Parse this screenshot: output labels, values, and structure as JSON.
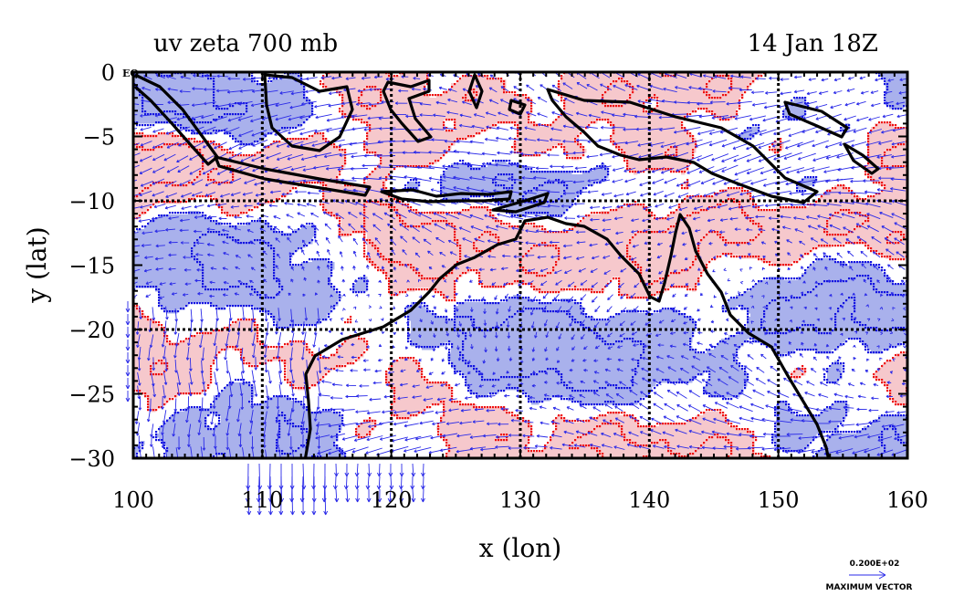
{
  "chart_data": {
    "type": "contour-vector-map",
    "title": "uv zeta 700 mb",
    "time_label": "14 Jan 18Z",
    "equator_label": "EQ",
    "xlabel": "x (lon)",
    "ylabel": "y (lat)",
    "xlim": [
      100,
      160
    ],
    "ylim": [
      -30,
      0
    ],
    "xticks": [
      100,
      110,
      120,
      130,
      140,
      150,
      160
    ],
    "yticks": [
      0,
      -5,
      -10,
      -15,
      -20,
      -25,
      -30
    ],
    "ytick_labels": [
      "0",
      "−5",
      "−10",
      "−15",
      "−20",
      "−25",
      "−30"
    ],
    "grid_lon": [
      110,
      120,
      130,
      140,
      150
    ],
    "grid_lat": [
      -10,
      -20
    ],
    "colors": {
      "positive_fill": "#f6c8cc",
      "negative_fill": "#a9b1ec",
      "positive_contour": "#ee1111",
      "negative_contour": "#1414e0",
      "vectors": "#2a2ae8",
      "coast": "#000000"
    },
    "reference_vector": {
      "value_label": "0.200E+02",
      "caption": "MAXIMUM VECTOR"
    }
  }
}
